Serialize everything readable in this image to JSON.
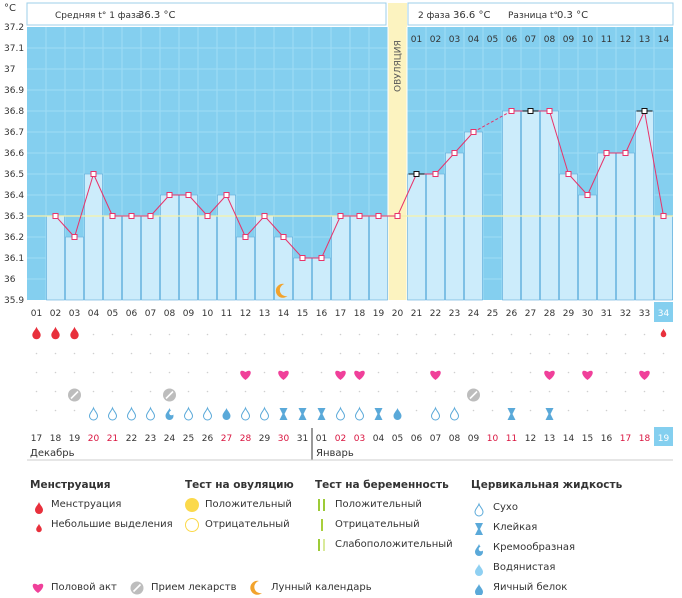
{
  "chart_data": {
    "type": "line",
    "unit_label": "°C",
    "y_ticks": [
      "37.2",
      "37.1",
      "37",
      "36.9",
      "36.8",
      "36.7",
      "36.6",
      "36.5",
      "36.4",
      "36.3",
      "36.2",
      "36.1",
      "36",
      "35.9"
    ],
    "ylim": [
      35.9,
      37.2
    ],
    "coverline": 36.3,
    "phase1": {
      "label": "Средняя t° 1 фаза",
      "value": "36.3 °C"
    },
    "phase2": {
      "label": "2 фаза",
      "value": "36.6 °C"
    },
    "difference": {
      "label": "Разница t°",
      "value": "0.3 °C"
    },
    "ovulation_label": "ОВУЛЯЦИЯ",
    "ovulation_day": 20,
    "cycle_days": [
      "01",
      "02",
      "03",
      "04",
      "05",
      "06",
      "07",
      "08",
      "09",
      "10",
      "11",
      "12",
      "13",
      "14",
      "15",
      "16",
      "17",
      "18",
      "19",
      "20",
      "21",
      "22",
      "23",
      "24",
      "25",
      "26",
      "27",
      "28",
      "29",
      "30",
      "31",
      "32",
      "33",
      "34"
    ],
    "phase2_days": [
      "01",
      "02",
      "03",
      "04",
      "05",
      "06",
      "07",
      "08",
      "09",
      "10",
      "11",
      "12",
      "13",
      "14"
    ],
    "series": [
      {
        "name": "Базальная температура",
        "values": [
          null,
          36.3,
          36.2,
          36.5,
          36.3,
          36.3,
          36.3,
          36.4,
          36.4,
          36.3,
          36.4,
          36.2,
          36.3,
          36.2,
          36.1,
          36.1,
          36.3,
          36.3,
          36.3,
          36.3,
          36.5,
          36.5,
          36.6,
          36.7,
          null,
          36.8,
          36.8,
          36.8,
          36.5,
          36.4,
          36.6,
          36.6,
          36.8,
          36.3
        ]
      }
    ],
    "missing_day_links": [
      [
        24,
        26
      ]
    ],
    "highlighted_points": [
      21,
      27,
      33
    ],
    "moon_day": 14,
    "calendar_dates": [
      "17",
      "18",
      "19",
      "20",
      "21",
      "22",
      "23",
      "24",
      "25",
      "26",
      "27",
      "28",
      "29",
      "30",
      "31",
      "01",
      "02",
      "03",
      "04",
      "05",
      "06",
      "07",
      "08",
      "09",
      "10",
      "11",
      "12",
      "13",
      "14",
      "15",
      "16",
      "17",
      "18",
      "19"
    ],
    "red_date_indices": [
      4,
      5,
      11,
      12,
      14,
      17,
      18,
      25,
      26,
      32,
      33
    ],
    "months": {
      "first": "Декабрь",
      "second": "Январь",
      "second_start_index": 15
    },
    "today_index": 34,
    "markers": {
      "menstruation_heavy": [
        1,
        2,
        3
      ],
      "menstruation_light": [
        34
      ],
      "intercourse": [
        12,
        14,
        17,
        18,
        22,
        28,
        30,
        33
      ],
      "medication": [
        3,
        8,
        24
      ],
      "mucus": [
        {
          "day": 4,
          "type": "dry"
        },
        {
          "day": 5,
          "type": "dry"
        },
        {
          "day": 6,
          "type": "dry"
        },
        {
          "day": 7,
          "type": "dry"
        },
        {
          "day": 8,
          "type": "creamy"
        },
        {
          "day": 9,
          "type": "dry"
        },
        {
          "day": 10,
          "type": "dry"
        },
        {
          "day": 11,
          "type": "eggwhite"
        },
        {
          "day": 12,
          "type": "dry"
        },
        {
          "day": 13,
          "type": "dry"
        },
        {
          "day": 14,
          "type": "sticky"
        },
        {
          "day": 15,
          "type": "sticky"
        },
        {
          "day": 16,
          "type": "sticky"
        },
        {
          "day": 17,
          "type": "dry"
        },
        {
          "day": 18,
          "type": "dry"
        },
        {
          "day": 19,
          "type": "sticky"
        },
        {
          "day": 20,
          "type": "eggwhite"
        },
        {
          "day": 22,
          "type": "dry"
        },
        {
          "day": 23,
          "type": "dry"
        },
        {
          "day": 26,
          "type": "sticky"
        },
        {
          "day": 28,
          "type": "sticky"
        }
      ]
    }
  },
  "legend": {
    "menstruation": {
      "title": "Менструация",
      "items": [
        "Менструация",
        "Небольшие выделения"
      ]
    },
    "ovulation_test": {
      "title": "Тест на овуляцию",
      "items": [
        "Положительный",
        "Отрицательный"
      ]
    },
    "pregnancy_test": {
      "title": "Тест на беременность",
      "items": [
        "Положительный",
        "Отрицательный",
        "Слабоположительный"
      ]
    },
    "cervical": {
      "title": "Цервикальная жидкость",
      "items": [
        "Сухо",
        "Клейкая",
        "Кремообразная",
        "Водянистая",
        "Яичный белок"
      ]
    },
    "bottom": [
      "Половой акт",
      "Прием лекарств",
      "Лунный календарь"
    ]
  },
  "colors": {
    "plot_bg": "#84cfef",
    "bar_fill": "#ccecfb",
    "bar_stroke": "#5aa9d9",
    "line": "#e8336a",
    "ovulation_band": "#fcf3c0",
    "sun": "#fbd94b",
    "blood": "#e8303c",
    "heart": "#f0409a",
    "pill": "#bdbdbd",
    "moon": "#f2a32c",
    "drop": "#5aa9d9",
    "red_date": "#d9143f",
    "today_bg": "#84cfef",
    "preg_pos": "#9dcb38",
    "preg_neg": "#a9cf3c"
  }
}
